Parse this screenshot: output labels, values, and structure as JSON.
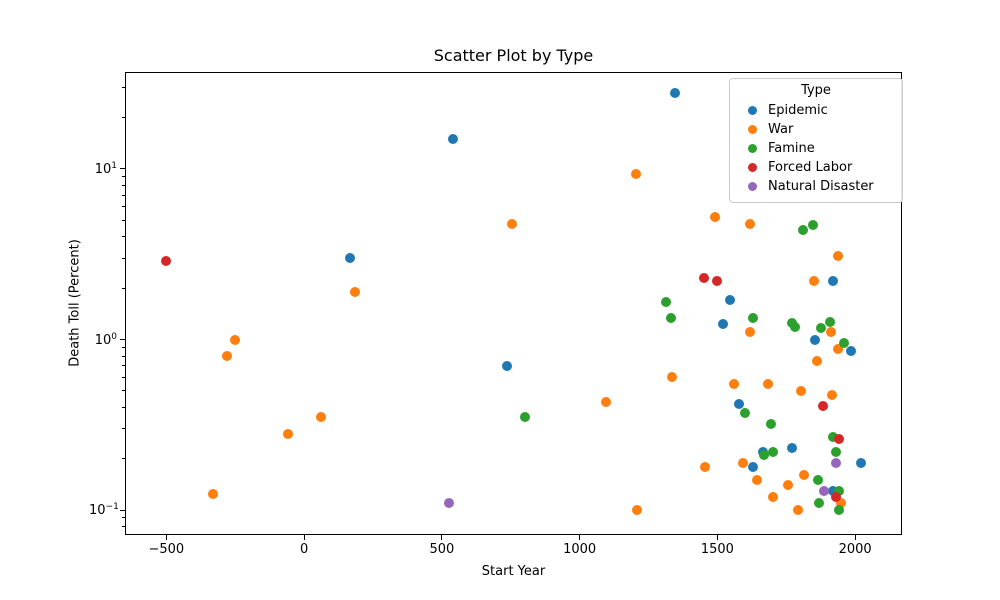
{
  "figure": {
    "title": "Scatter Plot by Type",
    "xlabel": "Start Year",
    "ylabel": "Death Toll (Percent)"
  },
  "legend": {
    "title": "Type",
    "entries": [
      {
        "label": "Epidemic",
        "color": "#1f77b4"
      },
      {
        "label": "War",
        "color": "#ff7f0e"
      },
      {
        "label": "Famine",
        "color": "#2ca02c"
      },
      {
        "label": "Forced Labor",
        "color": "#d62728"
      },
      {
        "label": "Natural Disaster",
        "color": "#9467bd"
      }
    ]
  },
  "chart_data": {
    "type": "scatter",
    "title": "Scatter Plot by Type",
    "xlabel": "Start Year",
    "ylabel": "Death Toll (Percent)",
    "x_axis": {
      "scale": "linear",
      "min": -650,
      "max": 2170,
      "ticks": [
        -500,
        0,
        500,
        1000,
        1500,
        2000
      ]
    },
    "y_axis": {
      "scale": "log",
      "min": 0.0715,
      "max": 37,
      "ticks": [
        0.1,
        1,
        10
      ],
      "tick_exponents": [
        -1,
        0,
        1
      ],
      "minor_ticks_per_decade": [
        2,
        3,
        4,
        5,
        6,
        7,
        8,
        9
      ]
    },
    "legend_position": "upper right",
    "series": [
      {
        "name": "Epidemic",
        "color": "#1f77b4",
        "points": [
          [
            165,
            3.0
          ],
          [
            541,
            15
          ],
          [
            735,
            0.7
          ],
          [
            1346,
            28
          ],
          [
            1520,
            1.23
          ],
          [
            1545,
            1.7
          ],
          [
            1580,
            0.42
          ],
          [
            1629,
            0.18
          ],
          [
            1665,
            0.22
          ],
          [
            1772,
            0.23
          ],
          [
            1855,
            1.0
          ],
          [
            1918,
            2.2
          ],
          [
            1920,
            0.13
          ],
          [
            1985,
            0.86
          ],
          [
            2020,
            0.19
          ]
        ]
      },
      {
        "name": "War",
        "color": "#ff7f0e",
        "points": [
          [
            -331,
            0.125
          ],
          [
            -280,
            0.8
          ],
          [
            -250,
            1.0
          ],
          [
            -58,
            0.28
          ],
          [
            60,
            0.35
          ],
          [
            184,
            1.9
          ],
          [
            755,
            4.75
          ],
          [
            1095,
            0.43
          ],
          [
            1206,
            9.3
          ],
          [
            1209,
            0.1
          ],
          [
            1337,
            0.6
          ],
          [
            1455,
            0.18
          ],
          [
            1492,
            5.2
          ],
          [
            1562,
            0.55
          ],
          [
            1592,
            0.19
          ],
          [
            1618,
            4.75
          ],
          [
            1620,
            1.1
          ],
          [
            1642,
            0.15
          ],
          [
            1683,
            0.55
          ],
          [
            1701,
            0.12
          ],
          [
            1756,
            0.14
          ],
          [
            1792,
            0.1
          ],
          [
            1803,
            0.5
          ],
          [
            1815,
            0.16
          ],
          [
            1850,
            2.2
          ],
          [
            1862,
            0.75
          ],
          [
            1914,
            1.1
          ],
          [
            1917,
            0.47
          ],
          [
            1937,
            0.88
          ],
          [
            1939,
            3.1
          ],
          [
            1950,
            0.11
          ]
        ]
      },
      {
        "name": "Famine",
        "color": "#2ca02c",
        "points": [
          [
            800,
            0.35
          ],
          [
            1315,
            1.65
          ],
          [
            1333,
            1.33
          ],
          [
            1601,
            0.37
          ],
          [
            1630,
            1.34
          ],
          [
            1670,
            0.21
          ],
          [
            1695,
            0.32
          ],
          [
            1700,
            0.22
          ],
          [
            1770,
            1.25
          ],
          [
            1783,
            1.19
          ],
          [
            1810,
            4.4
          ],
          [
            1846,
            4.7
          ],
          [
            1866,
            0.15
          ],
          [
            1869,
            0.11
          ],
          [
            1876,
            1.17
          ],
          [
            1907,
            1.27
          ],
          [
            1921,
            0.27
          ],
          [
            1932,
            0.22
          ],
          [
            1942,
            0.13
          ],
          [
            1943,
            0.1
          ],
          [
            1959,
            0.95
          ]
        ]
      },
      {
        "name": "Forced Labor",
        "color": "#d62728",
        "points": [
          [
            -500,
            2.9
          ],
          [
            1450,
            2.3
          ],
          [
            1500,
            2.2
          ],
          [
            1885,
            0.41
          ],
          [
            1930,
            0.12
          ],
          [
            1940,
            0.26
          ]
        ]
      },
      {
        "name": "Natural Disaster",
        "color": "#9467bd",
        "points": [
          [
            526,
            0.11
          ],
          [
            1887,
            0.13
          ],
          [
            1931,
            0.19
          ]
        ]
      }
    ]
  }
}
